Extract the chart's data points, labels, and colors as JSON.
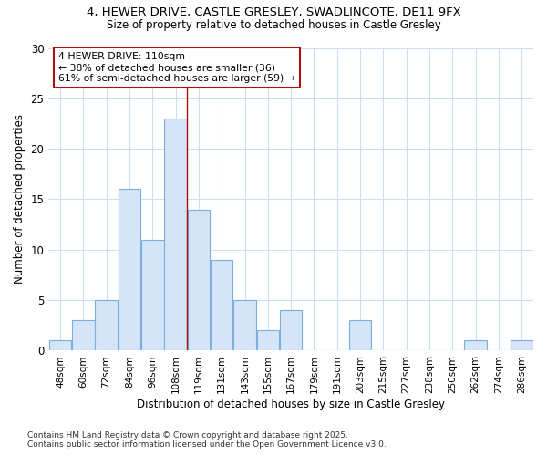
{
  "title_line1": "4, HEWER DRIVE, CASTLE GRESLEY, SWADLINCOTE, DE11 9FX",
  "title_line2": "Size of property relative to detached houses in Castle Gresley",
  "xlabel": "Distribution of detached houses by size in Castle Gresley",
  "ylabel": "Number of detached properties",
  "bins": [
    "48sqm",
    "60sqm",
    "72sqm",
    "84sqm",
    "96sqm",
    "108sqm",
    "119sqm",
    "131sqm",
    "143sqm",
    "155sqm",
    "167sqm",
    "179sqm",
    "191sqm",
    "203sqm",
    "215sqm",
    "227sqm",
    "238sqm",
    "250sqm",
    "262sqm",
    "274sqm",
    "286sqm"
  ],
  "values": [
    1,
    3,
    5,
    16,
    11,
    23,
    14,
    9,
    5,
    2,
    4,
    0,
    0,
    3,
    0,
    0,
    0,
    0,
    1,
    0,
    1
  ],
  "bar_color": "#d6e4f7",
  "bar_edge_color": "#7ab0e0",
  "vline_x": 5.5,
  "vline_color": "#aa1111",
  "annotation_title": "4 HEWER DRIVE: 110sqm",
  "annotation_line2": "← 38% of detached houses are smaller (36)",
  "annotation_line3": "61% of semi-detached houses are larger (59) →",
  "annotation_box_color": "#ffffff",
  "annotation_box_edge": "#aa1111",
  "yticks": [
    0,
    5,
    10,
    15,
    20,
    25,
    30
  ],
  "ylim": [
    0,
    30
  ],
  "bg_color": "#ffffff",
  "plot_bg_color": "#ffffff",
  "grid_color": "#d0ddf0",
  "footnote1": "Contains HM Land Registry data © Crown copyright and database right 2025.",
  "footnote2": "Contains public sector information licensed under the Open Government Licence v3.0."
}
